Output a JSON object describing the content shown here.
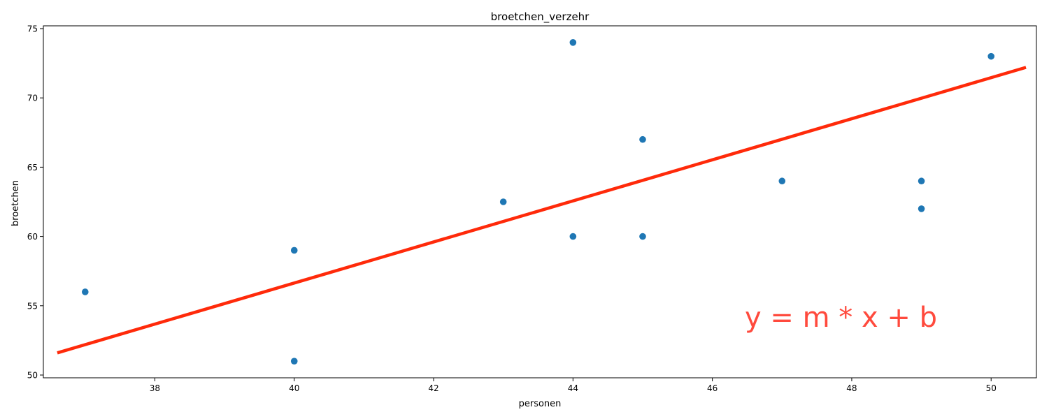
{
  "chart_data": {
    "type": "scatter",
    "title": "broetchen_verzehr",
    "xlabel": "personen",
    "ylabel": "broetchen",
    "xlim": [
      36.4,
      50.65
    ],
    "ylim": [
      49.8,
      75.2
    ],
    "xticks": [
      38,
      40,
      42,
      44,
      46,
      48,
      50
    ],
    "yticks": [
      50,
      55,
      60,
      65,
      70,
      75
    ],
    "grid": false,
    "points": [
      {
        "x": 37,
        "y": 56
      },
      {
        "x": 40,
        "y": 59
      },
      {
        "x": 40,
        "y": 51
      },
      {
        "x": 43,
        "y": 62.5
      },
      {
        "x": 44,
        "y": 74
      },
      {
        "x": 44,
        "y": 60
      },
      {
        "x": 45,
        "y": 67
      },
      {
        "x": 45,
        "y": 60
      },
      {
        "x": 47,
        "y": 64
      },
      {
        "x": 49,
        "y": 64
      },
      {
        "x": 49,
        "y": 62
      },
      {
        "x": 50,
        "y": 73
      }
    ],
    "fit_line": {
      "x": [
        36.6,
        50.5
      ],
      "y": [
        51.6,
        72.2
      ]
    },
    "annotation": "y = m * x + b",
    "colors": {
      "points": "#1f77b4",
      "fit_line": "#ff2a0a",
      "annotation": "#ff4a3d"
    }
  }
}
